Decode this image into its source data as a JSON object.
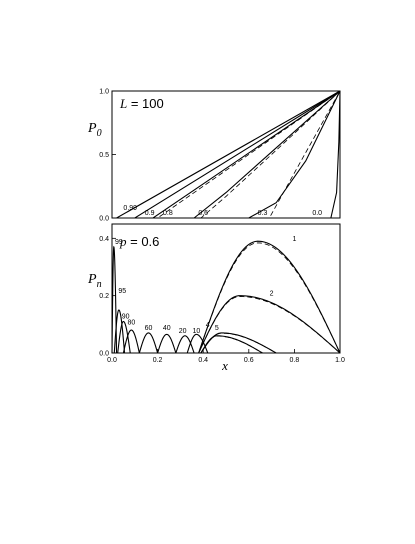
{
  "chart_data": [
    {
      "type": "line",
      "annotation_italic": "L",
      "annotation_rest": " = 100",
      "ylabel_main": "P",
      "ylabel_sub": "0",
      "xlim": [
        0.0,
        1.0
      ],
      "ylim": [
        0.0,
        1.0
      ],
      "yticks": [
        "0.0",
        "0.5",
        "1.0"
      ],
      "grid": false,
      "series": [
        {
          "label": "0.99",
          "style": "solid",
          "points": [
            [
              0.0,
              0
            ],
            [
              0.02,
              0
            ],
            [
              1.0,
              1.0
            ]
          ]
        },
        {
          "label": "0.9",
          "style": "solid",
          "points": [
            [
              0.0,
              0
            ],
            [
              0.1,
              0
            ],
            [
              1.0,
              1.0
            ]
          ]
        },
        {
          "label": "0.8",
          "style": "solid",
          "points": [
            [
              0.0,
              0
            ],
            [
              0.18,
              0
            ],
            [
              1.0,
              1.0
            ]
          ]
        },
        {
          "label": "0.8",
          "style": "dashed",
          "points": [
            [
              0.0,
              0
            ],
            [
              0.2,
              0
            ],
            [
              1.0,
              1.0
            ]
          ]
        },
        {
          "label": "0.6",
          "style": "solid",
          "points": [
            [
              0.0,
              0
            ],
            [
              0.36,
              0
            ],
            [
              0.5,
              0.2
            ],
            [
              0.7,
              0.52
            ],
            [
              1.0,
              1.0
            ]
          ]
        },
        {
          "label": "0.6",
          "style": "dashed",
          "points": [
            [
              0.0,
              0
            ],
            [
              0.39,
              0
            ],
            [
              0.5,
              0.17
            ],
            [
              0.7,
              0.5
            ],
            [
              1.0,
              1.0
            ]
          ]
        },
        {
          "label": "0.3",
          "style": "solid",
          "points": [
            [
              0.0,
              0
            ],
            [
              0.6,
              0
            ],
            [
              0.72,
              0.12
            ],
            [
              0.85,
              0.45
            ],
            [
              1.0,
              1.0
            ]
          ]
        },
        {
          "label": "0.3",
          "style": "dashed",
          "points": [
            [
              0.0,
              0
            ],
            [
              0.69,
              0
            ],
            [
              1.0,
              1.0
            ]
          ]
        },
        {
          "label": "0.0",
          "style": "solid",
          "points": [
            [
              0.0,
              0
            ],
            [
              0.96,
              0
            ],
            [
              0.985,
              0.2
            ],
            [
              0.995,
              0.6
            ],
            [
              1.0,
              1.0
            ]
          ]
        }
      ],
      "curve_labels": [
        {
          "text": "0.99",
          "x": 0.08,
          "y": 0.08
        },
        {
          "text": "0.9",
          "x": 0.165,
          "y": 0.04
        },
        {
          "text": "0.8",
          "x": 0.245,
          "y": 0.04
        },
        {
          "text": "0.6",
          "x": 0.4,
          "y": 0.04
        },
        {
          "text": "0.3",
          "x": 0.66,
          "y": 0.04
        },
        {
          "text": "0.0",
          "x": 0.9,
          "y": 0.04
        }
      ]
    },
    {
      "type": "line",
      "annotation_italic": "p",
      "annotation_rest": " = 0.6",
      "ylabel_main": "P",
      "ylabel_sub": "n",
      "xlabel": "x",
      "xlim": [
        0.0,
        1.0
      ],
      "ylim": [
        0.0,
        0.45
      ],
      "xticks": [
        "0.0",
        "0.2",
        "0.4",
        "0.6",
        "0.8",
        "1.0"
      ],
      "yticks": [
        "0.0",
        "0.2",
        "0.4"
      ],
      "grid": false,
      "humps": [
        {
          "n": "1",
          "center": 0.64,
          "peak": 0.39,
          "start": 0.38,
          "end": 1.0
        },
        {
          "n": "2",
          "center": 0.56,
          "peak": 0.2,
          "start": 0.38,
          "end": 1.0
        },
        {
          "n": "4",
          "center": 0.48,
          "peak": 0.07,
          "start": 0.39,
          "end": 0.72
        },
        {
          "n": "5",
          "center": 0.46,
          "peak": 0.06,
          "start": 0.39,
          "end": 0.66
        },
        {
          "n": "10",
          "center": 0.37,
          "peak": 0.065,
          "start": 0.33,
          "end": 0.42
        },
        {
          "n": "20",
          "center": 0.32,
          "peak": 0.06,
          "start": 0.28,
          "end": 0.36
        },
        {
          "n": "40",
          "center": 0.24,
          "peak": 0.065,
          "start": 0.2,
          "end": 0.28
        },
        {
          "n": "60",
          "center": 0.16,
          "peak": 0.07,
          "start": 0.12,
          "end": 0.2
        },
        {
          "n": "80",
          "center": 0.085,
          "peak": 0.08,
          "start": 0.05,
          "end": 0.12
        },
        {
          "n": "90",
          "center": 0.05,
          "peak": 0.11,
          "start": 0.025,
          "end": 0.08
        },
        {
          "n": "95",
          "center": 0.03,
          "peak": 0.15,
          "start": 0.01,
          "end": 0.055
        },
        {
          "n": "99",
          "center": 0.008,
          "peak": 0.37,
          "start": 0.0,
          "end": 0.02
        }
      ],
      "curve_labels": [
        {
          "text": "1",
          "x": 0.8,
          "y": 0.39
        },
        {
          "text": "2",
          "x": 0.7,
          "y": 0.2
        },
        {
          "text": "4",
          "x": 0.42,
          "y": 0.09
        },
        {
          "text": "5",
          "x": 0.46,
          "y": 0.08
        },
        {
          "text": "10",
          "x": 0.37,
          "y": 0.07
        },
        {
          "text": "20",
          "x": 0.31,
          "y": 0.07
        },
        {
          "text": "40",
          "x": 0.24,
          "y": 0.08
        },
        {
          "text": "60",
          "x": 0.16,
          "y": 0.08
        },
        {
          "text": "80",
          "x": 0.085,
          "y": 0.1
        },
        {
          "text": "90",
          "x": 0.06,
          "y": 0.12
        },
        {
          "text": "95",
          "x": 0.045,
          "y": 0.21
        },
        {
          "text": "99",
          "x": 0.03,
          "y": 0.38
        }
      ]
    }
  ]
}
